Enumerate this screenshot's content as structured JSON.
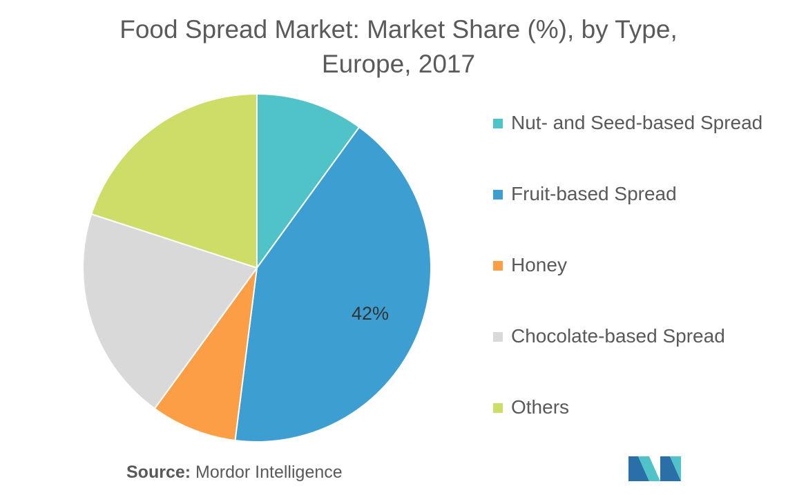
{
  "chart_data": {
    "type": "pie",
    "title_lines": [
      "Food Spread Market: Market Share (%), by Type,",
      "Europe, 2017"
    ],
    "slices": [
      {
        "label": "Nut- and Seed-based Spread",
        "value": 10,
        "color": "#4fc3c8"
      },
      {
        "label": "Fruit-based Spread",
        "value": 42,
        "color": "#3d9ed1",
        "data_label": "42%"
      },
      {
        "label": "Honey",
        "value": 8,
        "color": "#fb9e45"
      },
      {
        "label": "Chocolate-based Spread",
        "value": 20,
        "color": "#d9d9d9"
      },
      {
        "label": "Others",
        "value": 20,
        "color": "#cddd67"
      }
    ],
    "legend_position": "right"
  },
  "source": {
    "label": "Source:",
    "text": " Mordor Intelligence"
  },
  "logo": {
    "icon": "mordor-intelligence-logo",
    "colors": [
      "#2a6fa8",
      "#4fc3c8"
    ]
  }
}
